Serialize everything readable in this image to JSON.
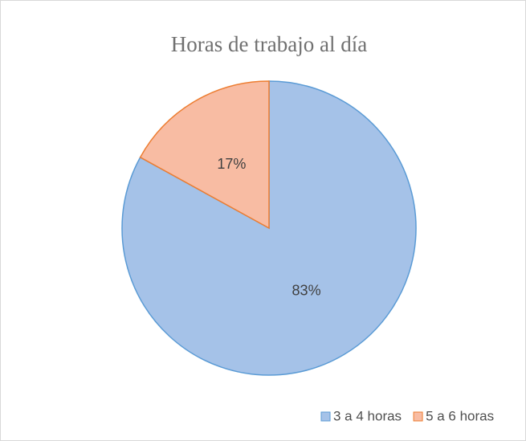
{
  "chart_data": {
    "type": "pie",
    "title": "Horas de trabajo al día",
    "categories": [
      "3 a 4 horas",
      "5 a 6 horas"
    ],
    "values": [
      83,
      17
    ],
    "value_labels": [
      "83%",
      "17%"
    ],
    "colors": [
      "#a5c2e8",
      "#f8bca3"
    ],
    "stroke_colors": [
      "#5b9bd5",
      "#ed7d31"
    ],
    "legend": "bottom"
  }
}
